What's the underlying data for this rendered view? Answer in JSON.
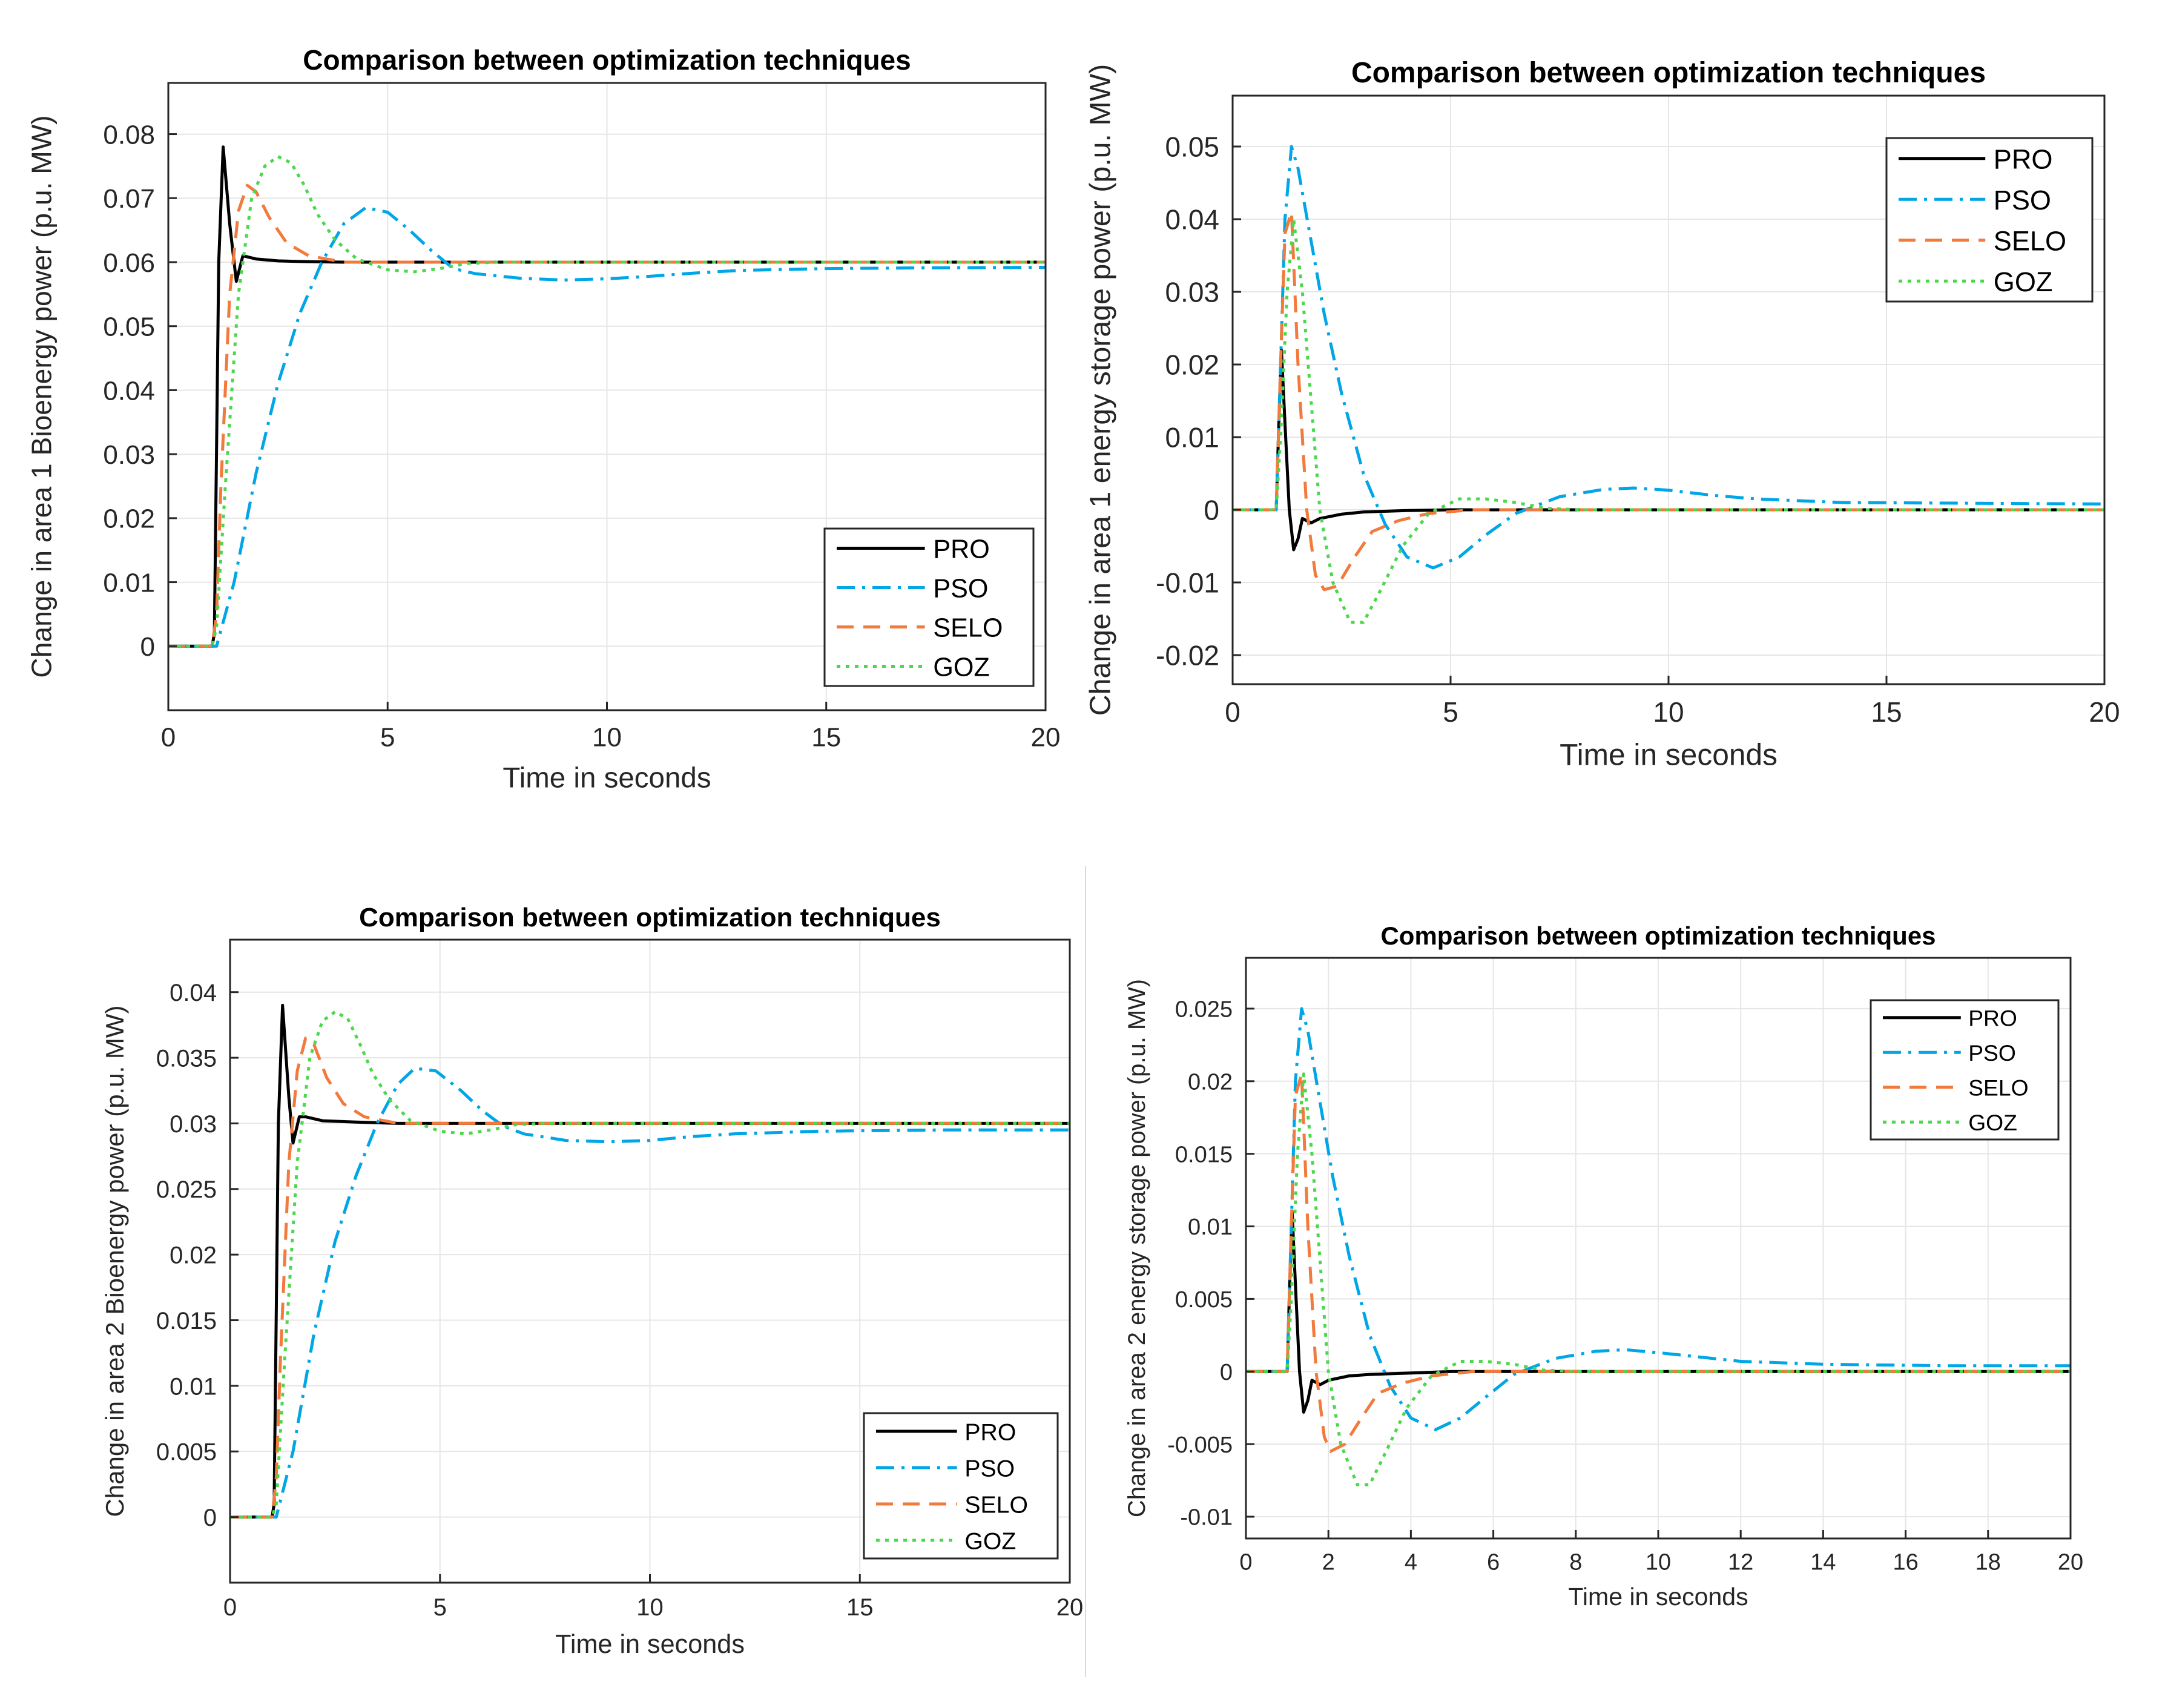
{
  "series_styles": {
    "PRO": {
      "color": "#000000",
      "dash": "solid"
    },
    "PSO": {
      "color": "#00a6e6",
      "dash": "dashdot"
    },
    "SELO": {
      "color": "#f27a3d",
      "dash": "dash"
    },
    "GOZ": {
      "color": "#4cd84c",
      "dash": "dot"
    }
  },
  "chart_data": [
    {
      "type": "line",
      "title": "Comparison between optimization techniques",
      "xlabel": "Time in seconds",
      "ylabel": "Change in area 1 Bioenergy power (p.u. MW)",
      "xlim": [
        0,
        20
      ],
      "ylim": [
        -0.01,
        0.088
      ],
      "xticks": [
        0,
        5,
        10,
        15,
        20
      ],
      "xtick_labels": [
        "0",
        "5",
        "10",
        "15",
        "20"
      ],
      "yticks": [
        0,
        0.01,
        0.02,
        0.03,
        0.04,
        0.05,
        0.06,
        0.07,
        0.08
      ],
      "ytick_labels": [
        "0",
        "0.01",
        "0.02",
        "0.03",
        "0.04",
        "0.05",
        "0.06",
        "0.07",
        "0.08"
      ],
      "grid": true,
      "legend_position": "bottom-right",
      "series": [
        {
          "name": "PRO",
          "x": [
            0,
            1.0,
            1.05,
            1.15,
            1.25,
            1.4,
            1.55,
            1.7,
            2.0,
            2.5,
            3.0,
            4.0,
            6.0,
            10.0,
            20.0
          ],
          "values": [
            0,
            0,
            0.002,
            0.06,
            0.078,
            0.066,
            0.057,
            0.061,
            0.0605,
            0.0602,
            0.0601,
            0.06,
            0.06,
            0.06,
            0.06
          ]
        },
        {
          "name": "PSO",
          "x": [
            0,
            1.0,
            1.1,
            1.5,
            2.0,
            2.5,
            3.0,
            3.5,
            4.0,
            4.5,
            5.0,
            5.5,
            6.0,
            6.5,
            7.0,
            8.0,
            9.0,
            10.0,
            11.0,
            12.0,
            13.0,
            15.0,
            17.0,
            20.0
          ],
          "values": [
            0,
            0,
            0,
            0.01,
            0.027,
            0.041,
            0.052,
            0.06,
            0.066,
            0.0685,
            0.0678,
            0.065,
            0.0618,
            0.059,
            0.0582,
            0.0575,
            0.0572,
            0.0574,
            0.0578,
            0.0583,
            0.0587,
            0.059,
            0.0591,
            0.0592
          ]
        },
        {
          "name": "SELO",
          "x": [
            0,
            1.0,
            1.1,
            1.2,
            1.4,
            1.6,
            1.8,
            2.0,
            2.3,
            2.7,
            3.2,
            4.0,
            5.0,
            20.0
          ],
          "values": [
            0,
            0,
            0.005,
            0.025,
            0.055,
            0.068,
            0.072,
            0.071,
            0.067,
            0.063,
            0.061,
            0.06,
            0.06,
            0.06
          ]
        },
        {
          "name": "GOZ",
          "x": [
            0,
            1.0,
            1.1,
            1.3,
            1.6,
            1.9,
            2.2,
            2.5,
            2.8,
            3.1,
            3.4,
            3.8,
            4.3,
            5.0,
            5.6,
            6.2,
            6.8,
            7.5,
            8.5,
            20.0
          ],
          "values": [
            0,
            0,
            0.003,
            0.025,
            0.055,
            0.07,
            0.075,
            0.0765,
            0.0755,
            0.072,
            0.0675,
            0.0635,
            0.0605,
            0.0588,
            0.0585,
            0.059,
            0.0598,
            0.06,
            0.06,
            0.06
          ]
        }
      ]
    },
    {
      "type": "line",
      "title": "Comparison between optimization techniques",
      "xlabel": "Time in seconds",
      "ylabel": "Change in area 1 energy storage power (p.u. MW)",
      "xlim": [
        0,
        20
      ],
      "ylim": [
        -0.024,
        0.057
      ],
      "xticks": [
        0,
        5,
        10,
        15,
        20
      ],
      "xtick_labels": [
        "0",
        "5",
        "10",
        "15",
        "20"
      ],
      "yticks": [
        -0.02,
        -0.01,
        0,
        0.01,
        0.02,
        0.03,
        0.04,
        0.05
      ],
      "ytick_labels": [
        "-0.02",
        "-0.01",
        "0",
        "0.01",
        "0.02",
        "0.03",
        "0.04",
        "0.05"
      ],
      "grid": true,
      "legend_position": "top-right",
      "series": [
        {
          "name": "PRO",
          "x": [
            0,
            1.0,
            1.05,
            1.12,
            1.2,
            1.3,
            1.4,
            1.5,
            1.6,
            1.8,
            2.0,
            2.5,
            3.0,
            4.0,
            5.0,
            20.0
          ],
          "values": [
            0,
            0,
            0.01,
            0.022,
            0.012,
            0.0,
            -0.0055,
            -0.004,
            -0.0012,
            -0.0018,
            -0.0012,
            -0.0006,
            -0.0003,
            -0.0001,
            0,
            0
          ]
        },
        {
          "name": "PSO",
          "x": [
            0,
            1.0,
            1.1,
            1.2,
            1.35,
            1.5,
            1.8,
            2.1,
            2.5,
            3.0,
            3.5,
            4.0,
            4.6,
            5.2,
            5.8,
            6.5,
            7.5,
            8.5,
            9.2,
            10.0,
            11.0,
            12.0,
            14.0,
            17.0,
            20.0
          ],
          "values": [
            0,
            0,
            0.02,
            0.04,
            0.05,
            0.047,
            0.037,
            0.027,
            0.016,
            0.005,
            -0.002,
            -0.0065,
            -0.008,
            -0.0065,
            -0.0035,
            -0.0005,
            0.0018,
            0.0028,
            0.003,
            0.0027,
            0.002,
            0.0015,
            0.001,
            0.0009,
            0.0008
          ]
        },
        {
          "name": "SELO",
          "x": [
            0,
            1.0,
            1.1,
            1.2,
            1.35,
            1.5,
            1.7,
            1.9,
            2.1,
            2.4,
            2.8,
            3.2,
            3.8,
            4.5,
            5.5,
            6.5,
            20.0
          ],
          "values": [
            0,
            0,
            0.02,
            0.038,
            0.041,
            0.02,
            0.0,
            -0.009,
            -0.011,
            -0.0105,
            -0.0065,
            -0.003,
            -0.0015,
            -0.0005,
            0,
            0,
            0
          ]
        },
        {
          "name": "GOZ",
          "x": [
            0,
            1.0,
            1.1,
            1.25,
            1.4,
            1.6,
            1.8,
            2.0,
            2.3,
            2.7,
            3.0,
            3.4,
            3.9,
            4.5,
            5.2,
            5.8,
            6.5,
            7.2,
            8.0,
            20.0
          ],
          "values": [
            0,
            0,
            0.01,
            0.03,
            0.04,
            0.03,
            0.015,
            0.0,
            -0.01,
            -0.0155,
            -0.0155,
            -0.011,
            -0.005,
            -0.0005,
            0.0015,
            0.0015,
            0.001,
            0.0002,
            0,
            0
          ]
        }
      ]
    },
    {
      "type": "line",
      "title": "Comparison between optimization techniques",
      "xlabel": "Time in seconds",
      "ylabel": "Change in area 2 Bioenergy power (p.u. MW)",
      "xlim": [
        0,
        20
      ],
      "ylim": [
        -0.005,
        0.044
      ],
      "xticks": [
        0,
        5,
        10,
        15,
        20
      ],
      "xtick_labels": [
        "0",
        "5",
        "10",
        "15",
        "20"
      ],
      "yticks": [
        0,
        0.005,
        0.01,
        0.015,
        0.02,
        0.025,
        0.03,
        0.035,
        0.04
      ],
      "ytick_labels": [
        "0",
        "0.005",
        "0.01",
        "0.015",
        "0.02",
        "0.025",
        "0.03",
        "0.035",
        "0.04"
      ],
      "grid": true,
      "legend_position": "bottom-right",
      "series": [
        {
          "name": "PRO",
          "x": [
            0,
            1.0,
            1.05,
            1.15,
            1.25,
            1.4,
            1.5,
            1.65,
            1.8,
            2.2,
            3.0,
            4.0,
            6.0,
            20.0
          ],
          "values": [
            0,
            0,
            0.001,
            0.03,
            0.039,
            0.032,
            0.0285,
            0.0305,
            0.0305,
            0.0302,
            0.0301,
            0.03,
            0.03,
            0.03
          ]
        },
        {
          "name": "PSO",
          "x": [
            0,
            1.0,
            1.1,
            1.5,
            2.0,
            2.5,
            3.0,
            3.5,
            4.0,
            4.4,
            4.9,
            5.5,
            6.0,
            6.5,
            7.0,
            8.0,
            9.0,
            10.0,
            11.0,
            12.0,
            14.0,
            17.0,
            20.0
          ],
          "values": [
            0,
            0,
            0,
            0.005,
            0.014,
            0.021,
            0.026,
            0.03,
            0.033,
            0.0342,
            0.034,
            0.0325,
            0.031,
            0.0298,
            0.0292,
            0.0287,
            0.0286,
            0.0287,
            0.029,
            0.0292,
            0.0294,
            0.0295,
            0.0295
          ]
        },
        {
          "name": "SELO",
          "x": [
            0,
            1.0,
            1.1,
            1.2,
            1.4,
            1.6,
            1.8,
            2.0,
            2.3,
            2.7,
            3.2,
            4.0,
            5.0,
            20.0
          ],
          "values": [
            0,
            0,
            0.003,
            0.012,
            0.027,
            0.034,
            0.0365,
            0.036,
            0.0335,
            0.0315,
            0.0305,
            0.03,
            0.03,
            0.03
          ]
        },
        {
          "name": "GOZ",
          "x": [
            0,
            1.0,
            1.1,
            1.3,
            1.6,
            1.9,
            2.2,
            2.5,
            2.8,
            3.1,
            3.4,
            3.8,
            4.3,
            5.0,
            5.6,
            6.2,
            6.8,
            7.5,
            8.5,
            20.0
          ],
          "values": [
            0,
            0,
            0.001,
            0.012,
            0.027,
            0.035,
            0.0378,
            0.0385,
            0.038,
            0.036,
            0.0338,
            0.0318,
            0.0302,
            0.0294,
            0.0292,
            0.0295,
            0.0299,
            0.03,
            0.03,
            0.03
          ]
        }
      ]
    },
    {
      "type": "line",
      "title": "Comparison between optimization techniques",
      "xlabel": "Time in seconds",
      "ylabel": "Change in area 2 energy storage power (p.u. MW)",
      "xlim": [
        0,
        20
      ],
      "ylim": [
        -0.0115,
        0.0285
      ],
      "xticks": [
        0,
        2,
        4,
        6,
        8,
        10,
        12,
        14,
        16,
        18,
        20
      ],
      "xtick_labels": [
        "0",
        "2",
        "4",
        "6",
        "8",
        "10",
        "12",
        "14",
        "16",
        "18",
        "20"
      ],
      "yticks": [
        -0.01,
        -0.005,
        0,
        0.005,
        0.01,
        0.015,
        0.02,
        0.025
      ],
      "ytick_labels": [
        "-0.01",
        "-0.005",
        "0",
        "0.005",
        "0.01",
        "0.015",
        "0.02",
        "0.025"
      ],
      "grid": true,
      "legend_position": "top-right",
      "series": [
        {
          "name": "PRO",
          "x": [
            0,
            1.0,
            1.05,
            1.12,
            1.2,
            1.3,
            1.4,
            1.5,
            1.6,
            1.8,
            2.0,
            2.5,
            3.0,
            4.0,
            5.0,
            20.0
          ],
          "values": [
            0,
            0,
            0.005,
            0.011,
            0.006,
            0.0,
            -0.0028,
            -0.002,
            -0.0006,
            -0.0009,
            -0.0006,
            -0.0003,
            -0.0002,
            -0.0001,
            0,
            0
          ]
        },
        {
          "name": "PSO",
          "x": [
            0,
            1.0,
            1.1,
            1.2,
            1.35,
            1.5,
            1.8,
            2.1,
            2.5,
            3.0,
            3.5,
            4.0,
            4.6,
            5.2,
            5.8,
            6.5,
            7.5,
            8.5,
            9.2,
            10.0,
            11.0,
            12.0,
            14.0,
            17.0,
            20.0
          ],
          "values": [
            0,
            0,
            0.01,
            0.02,
            0.025,
            0.0235,
            0.0185,
            0.0135,
            0.008,
            0.0025,
            -0.001,
            -0.0032,
            -0.004,
            -0.0032,
            -0.0018,
            -0.0002,
            0.0009,
            0.0014,
            0.0015,
            0.0013,
            0.001,
            0.0007,
            0.0005,
            0.0004,
            0.0004
          ]
        },
        {
          "name": "SELO",
          "x": [
            0,
            1.0,
            1.1,
            1.2,
            1.35,
            1.5,
            1.7,
            1.9,
            2.05,
            2.4,
            2.8,
            3.2,
            3.8,
            4.5,
            5.5,
            6.5,
            20.0
          ],
          "values": [
            0,
            0,
            0.01,
            0.019,
            0.0205,
            0.01,
            0.0,
            -0.0045,
            -0.0055,
            -0.005,
            -0.0032,
            -0.0015,
            -0.0008,
            -0.0003,
            0,
            0,
            0
          ]
        },
        {
          "name": "GOZ",
          "x": [
            0,
            1.0,
            1.1,
            1.25,
            1.4,
            1.6,
            1.8,
            2.0,
            2.3,
            2.7,
            3.0,
            3.4,
            3.9,
            4.5,
            5.2,
            5.8,
            6.5,
            7.2,
            8.0,
            20.0
          ],
          "values": [
            0,
            0,
            0.005,
            0.015,
            0.0205,
            0.015,
            0.0075,
            0.0,
            -0.005,
            -0.0078,
            -0.0078,
            -0.0055,
            -0.0025,
            -0.0003,
            0.0007,
            0.0007,
            0.0005,
            0.0001,
            0,
            0
          ]
        }
      ]
    }
  ]
}
